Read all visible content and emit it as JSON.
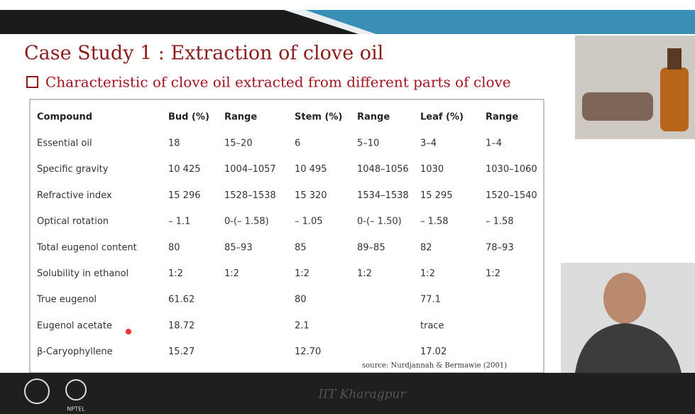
{
  "header": {
    "title": "Case Study 1 : Extraction of clove oil",
    "subtitle": "Characteristic of clove oil extracted from different parts of clove"
  },
  "table": {
    "columns": [
      "Compound",
      "Bud (%)",
      "Range",
      "Stem (%)",
      "Range",
      "Leaf (%)",
      "Range"
    ],
    "rows": [
      [
        "Essential oil",
        "18",
        "15–20",
        "6",
        "5–10",
        "3–4",
        "1–4"
      ],
      [
        "Specific gravity",
        "10 425",
        "1004–1057",
        "10 495",
        "1048–1056",
        "1030",
        "1030–1060"
      ],
      [
        "Refractive index",
        "15 296",
        "1528–1538",
        "15 320",
        "1534–1538",
        "15 295",
        "1520–1540"
      ],
      [
        "Optical rotation",
        "– 1.1",
        "0-(– 1.58)",
        "– 1.05",
        "0-(– 1.50)",
        "– 1.58",
        "– 1.58"
      ],
      [
        "Total eugenol content",
        "80",
        "85–93",
        "85",
        "89–85",
        "82",
        "78–93"
      ],
      [
        "Solubility in ethanol",
        "1:2",
        "1:2",
        "1:2",
        "1:2",
        "1:2",
        "1:2"
      ],
      [
        "True eugenol",
        "61.62",
        null,
        "80",
        null,
        "77.1",
        null
      ],
      [
        "Eugenol acetate",
        "18.72",
        null,
        "2.1",
        null,
        "trace",
        null
      ],
      [
        "β-Caryophyllene",
        "15.27",
        null,
        "12.70",
        null,
        "17.02",
        null
      ]
    ],
    "source": "source: Nurdjannah & Bermawie (2001)"
  },
  "footer": {
    "institute": "IIT Kharagpur",
    "logo_text": "NPTEL"
  }
}
